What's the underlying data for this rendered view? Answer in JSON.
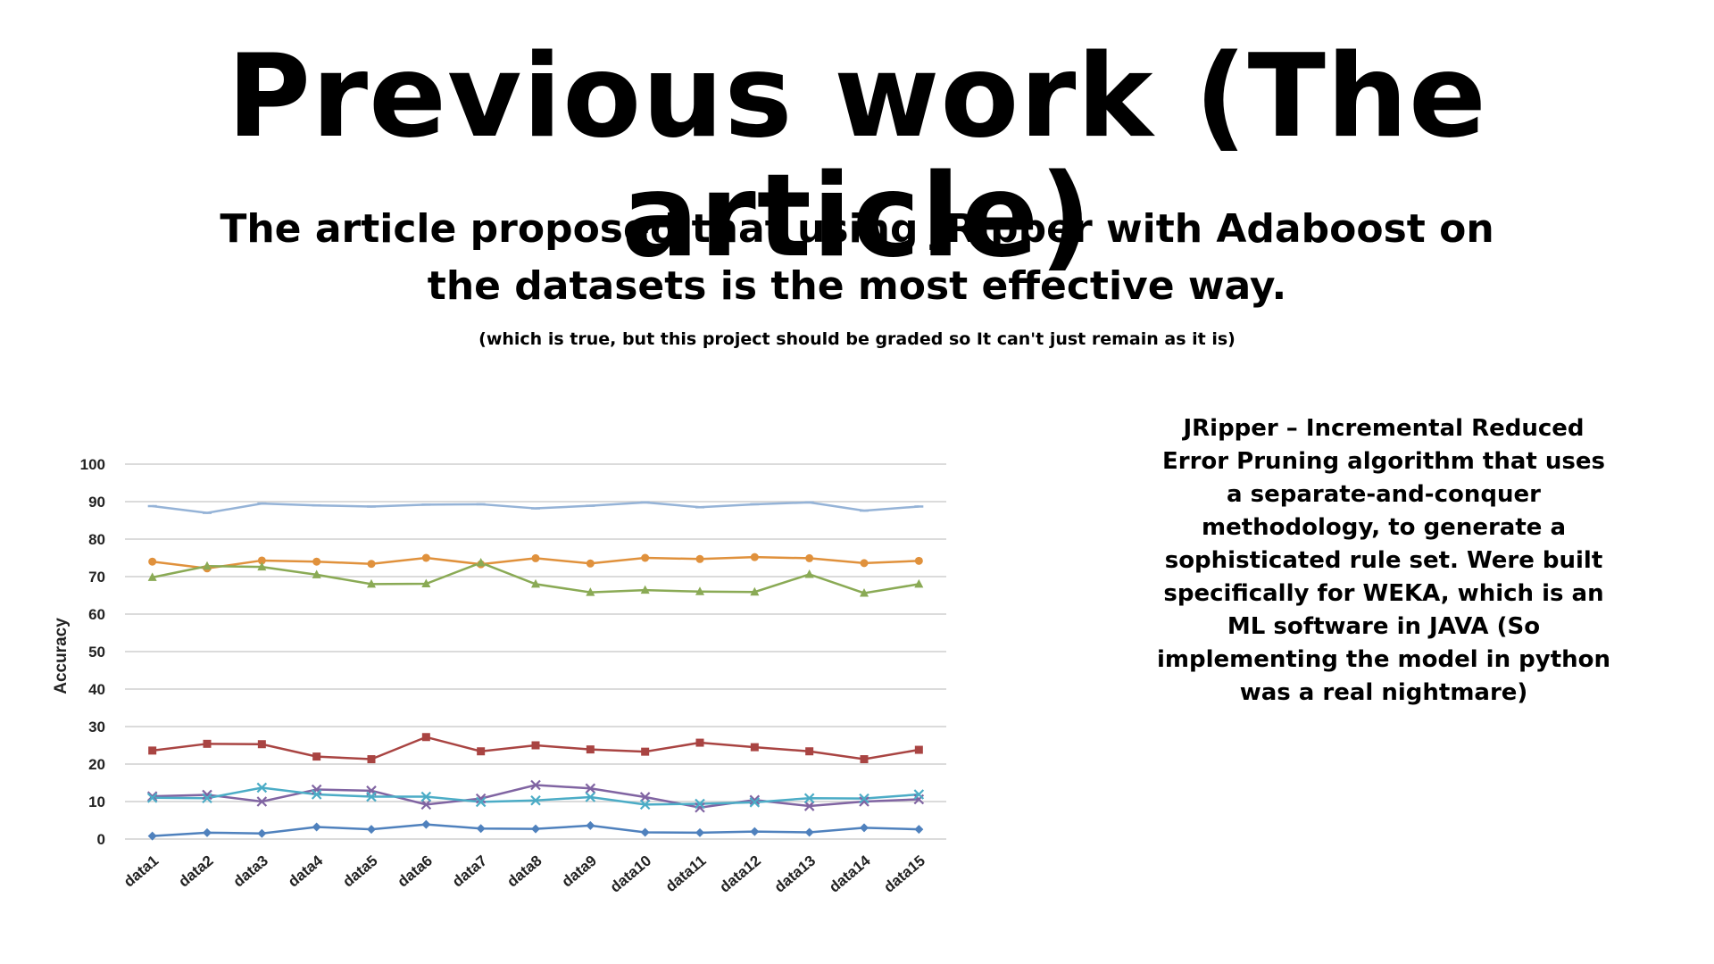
{
  "slide": {
    "title": "Previous work (The article)",
    "subtitle": "The article proposed that using JRipper with Adaboost on the datasets is the most effective way.",
    "note": "(which is true, but this project should be graded so It can't just remain as it is)",
    "description": "JRipper – Incremental Reduced Error Pruning algorithm that uses a separate-and-conquer methodology, to generate a sophisticated rule set. Were built specifically for WEKA, which is an ML software in JAVA (So implementing the model in python was a real nightmare)"
  },
  "chart_data": {
    "type": "line",
    "title": "",
    "xlabel": "",
    "ylabel": "Accuracy",
    "ylim": [
      0,
      100
    ],
    "yticks": [
      0,
      10,
      20,
      30,
      40,
      50,
      60,
      70,
      80,
      90,
      100
    ],
    "grid": true,
    "legend": "none",
    "categories": [
      "data1",
      "data2",
      "data3",
      "data4",
      "data5",
      "data6",
      "data7",
      "data8",
      "data9",
      "data10",
      "data11",
      "data12",
      "data13",
      "data14",
      "data15"
    ],
    "series": [
      {
        "color": "#95B3D7",
        "marker": "dash",
        "values": [
          88.8,
          87.0,
          89.5,
          89.0,
          88.7,
          89.2,
          89.3,
          88.2,
          88.9,
          89.8,
          88.5,
          89.3,
          89.8,
          87.6,
          88.7
        ]
      },
      {
        "color": "#E0913C",
        "marker": "circle",
        "values": [
          74.0,
          72.2,
          74.3,
          74.0,
          73.4,
          75.0,
          73.3,
          74.9,
          73.5,
          75.0,
          74.7,
          75.2,
          74.9,
          73.6,
          74.2
        ]
      },
      {
        "color": "#8AAA55",
        "marker": "triangle",
        "values": [
          69.8,
          72.8,
          72.6,
          70.5,
          68.0,
          68.1,
          73.7,
          68.0,
          65.8,
          66.4,
          66.0,
          65.9,
          70.6,
          65.6,
          68.0
        ]
      },
      {
        "color": "#A94442",
        "marker": "square",
        "values": [
          23.6,
          25.4,
          25.3,
          22.0,
          21.3,
          27.2,
          23.4,
          25.0,
          23.9,
          23.3,
          25.7,
          24.5,
          23.4,
          21.3,
          23.8
        ]
      },
      {
        "color": "#8064A2",
        "marker": "x",
        "values": [
          11.4,
          11.8,
          10.0,
          13.2,
          12.9,
          9.2,
          10.8,
          14.4,
          13.5,
          11.2,
          8.4,
          10.4,
          8.8,
          10.0,
          10.6
        ]
      },
      {
        "color": "#4BACC6",
        "marker": "x",
        "values": [
          11.0,
          10.9,
          13.7,
          11.9,
          11.3,
          11.3,
          9.9,
          10.3,
          11.2,
          9.2,
          9.4,
          9.8,
          10.9,
          10.8,
          11.9
        ]
      },
      {
        "color": "#4F81BD",
        "marker": "diamond",
        "values": [
          0.8,
          1.7,
          1.5,
          3.2,
          2.6,
          3.9,
          2.8,
          2.7,
          3.6,
          1.8,
          1.7,
          2.0,
          1.8,
          3.0,
          2.6
        ]
      }
    ]
  }
}
